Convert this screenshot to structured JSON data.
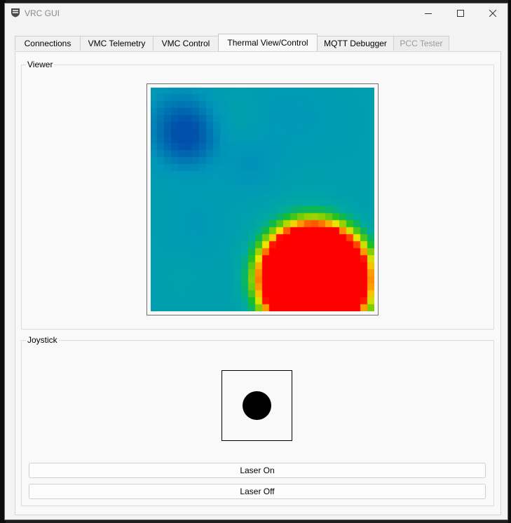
{
  "window": {
    "title": "VRC GUI",
    "icon": "shield-logo-icon"
  },
  "window_controls": {
    "minimize": "minimize-icon",
    "maximize": "maximize-icon",
    "close": "close-icon"
  },
  "tabs": [
    {
      "label": "Connections",
      "state": "normal"
    },
    {
      "label": "VMC Telemetry",
      "state": "normal"
    },
    {
      "label": "VMC Control",
      "state": "normal"
    },
    {
      "label": "Thermal View/Control",
      "state": "active"
    },
    {
      "label": "MQTT Debugger",
      "state": "normal"
    },
    {
      "label": "PCC Tester",
      "state": "disabled"
    }
  ],
  "viewer": {
    "label": "Viewer",
    "heatmap": {
      "rows": 32,
      "cols": 32,
      "hot_spot": {
        "center_col": 23,
        "center_row": 27,
        "radius": 6
      },
      "colors": {
        "hot": "#ff0000",
        "cool": "#00a0b0",
        "cold": "#0060b0"
      }
    }
  },
  "joystick": {
    "label": "Joystick",
    "knob_color": "#000000"
  },
  "buttons": {
    "laser_on": "Laser On",
    "laser_off": "Laser Off"
  }
}
